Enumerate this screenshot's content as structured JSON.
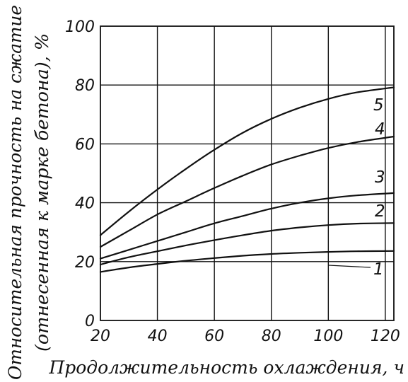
{
  "chart_data": {
    "type": "line",
    "title": "",
    "xlabel": "Продолжительность охлаждения, ч",
    "ylabel_line1": "Относительная прочность на сжатие",
    "ylabel_line2": "(отнесенная к марке бетона), %",
    "xlim": [
      20,
      123
    ],
    "ylim": [
      0,
      100
    ],
    "x_ticks": [
      20,
      40,
      60,
      80,
      100,
      120
    ],
    "y_ticks": [
      0,
      20,
      40,
      60,
      80,
      100
    ],
    "x_tick_labels": [
      "20",
      "40",
      "60",
      "80",
      "100",
      "120"
    ],
    "y_tick_labels": [
      "0",
      "20",
      "40",
      "60",
      "80",
      "100"
    ],
    "grid": true,
    "series": [
      {
        "name": "1",
        "x": [
          20,
          30,
          40,
          50,
          60,
          70,
          80,
          90,
          100,
          110,
          123
        ],
        "y": [
          16.5,
          18,
          19.2,
          20.3,
          21.2,
          22,
          22.6,
          23,
          23.3,
          23.5,
          23.6
        ]
      },
      {
        "name": "2",
        "x": [
          20,
          30,
          40,
          50,
          60,
          70,
          80,
          90,
          100,
          110,
          123
        ],
        "y": [
          19,
          21.5,
          23.5,
          25.5,
          27.3,
          29,
          30.5,
          31.6,
          32.4,
          32.9,
          33.1
        ]
      },
      {
        "name": "3",
        "x": [
          20,
          30,
          40,
          50,
          60,
          70,
          80,
          90,
          100,
          110,
          123
        ],
        "y": [
          21,
          24,
          27,
          30,
          33,
          35.5,
          38,
          40,
          41.5,
          42.5,
          43.3
        ]
      },
      {
        "name": "4",
        "x": [
          20,
          30,
          40,
          50,
          60,
          70,
          80,
          90,
          100,
          110,
          123
        ],
        "y": [
          25,
          30.5,
          36,
          40.5,
          45,
          49.2,
          53,
          56,
          58.6,
          60.6,
          62.5
        ]
      },
      {
        "name": "5",
        "x": [
          20,
          30,
          40,
          50,
          60,
          70,
          80,
          90,
          100,
          110,
          123
        ],
        "y": [
          29,
          37,
          44.5,
          51.5,
          58,
          63.8,
          68.5,
          72.3,
          75.3,
          77.5,
          79.2
        ]
      }
    ]
  }
}
